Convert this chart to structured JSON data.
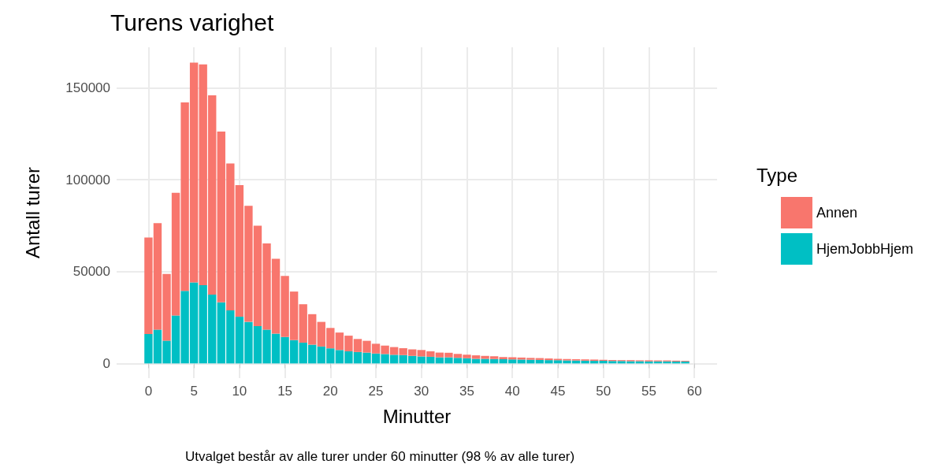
{
  "chart_data": {
    "type": "bar",
    "title": "Turens varighet",
    "xlabel": "Minutter",
    "ylabel": "Antall turer",
    "legend_title": "Type",
    "annotations": [
      "Utvalget består av alle turer under 60 minutter (98 % av alle turer)"
    ],
    "x": [
      0,
      1,
      2,
      3,
      4,
      5,
      6,
      7,
      8,
      9,
      10,
      11,
      12,
      13,
      14,
      15,
      16,
      17,
      18,
      19,
      20,
      21,
      22,
      23,
      24,
      25,
      26,
      27,
      28,
      29,
      30,
      31,
      32,
      33,
      34,
      35,
      36,
      37,
      38,
      39,
      40,
      41,
      42,
      43,
      44,
      45,
      46,
      47,
      48,
      49,
      50,
      51,
      52,
      53,
      54,
      55,
      56,
      57,
      58,
      59
    ],
    "stacked": true,
    "series": [
      {
        "name": "HjemJobbHjem",
        "color": "#00bfc4",
        "values": [
          16000,
          18400,
          12400,
          26100,
          39500,
          44100,
          42600,
          37400,
          33200,
          28900,
          25400,
          22600,
          20300,
          18400,
          16200,
          14400,
          12700,
          11300,
          10200,
          9200,
          8200,
          7300,
          6600,
          6200,
          5900,
          5400,
          5100,
          4700,
          4500,
          4100,
          3800,
          3600,
          3300,
          3300,
          3000,
          2800,
          2500,
          2500,
          2400,
          2300,
          2200,
          2100,
          2000,
          1900,
          1800,
          1700,
          1600,
          1600,
          1500,
          1400,
          1400,
          1300,
          1300,
          1200,
          1200,
          1100,
          1100,
          1100,
          1000,
          1000
        ]
      },
      {
        "name": "Annen",
        "color": "#f8766d",
        "values": [
          52500,
          57900,
          36300,
          66700,
          102500,
          119500,
          120100,
          108500,
          92900,
          79900,
          71600,
          63100,
          54600,
          46900,
          40700,
          33200,
          26400,
          20900,
          16600,
          13400,
          11100,
          9500,
          8500,
          7100,
          6400,
          5300,
          4600,
          4200,
          3800,
          3500,
          3500,
          3000,
          2600,
          2500,
          2200,
          2000,
          1900,
          1600,
          1500,
          1200,
          1200,
          1100,
          1000,
          1000,
          900,
          800,
          800,
          700,
          700,
          700,
          600,
          600,
          500,
          600,
          500,
          600,
          500,
          500,
          500,
          400
        ]
      }
    ],
    "xlim": [
      -3.5,
      62.5
    ],
    "xticks": [
      0,
      5,
      10,
      15,
      20,
      25,
      30,
      35,
      40,
      45,
      50,
      55,
      60
    ],
    "ylim": [
      -8000,
      172000
    ],
    "yticks": [
      0,
      50000,
      100000,
      150000
    ],
    "grid": true,
    "legend": "right"
  }
}
